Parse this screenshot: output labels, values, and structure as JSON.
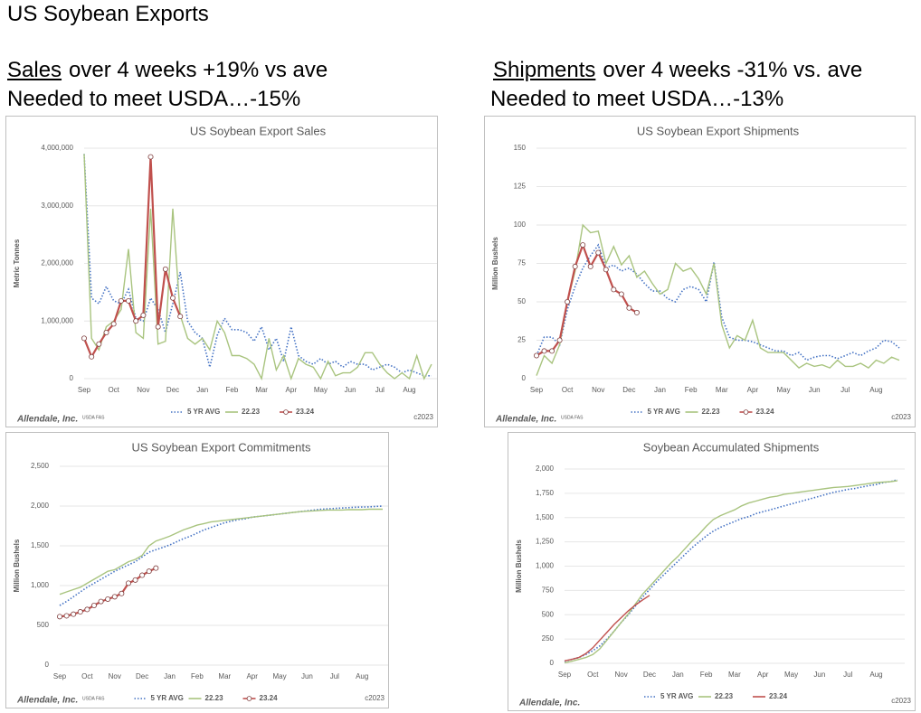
{
  "title": "US Soybean Exports",
  "left_heading": {
    "underlined": "Sales",
    "text": "over 4 weeks +19% vs ave",
    "line2": "Needed to meet USDA…-15%"
  },
  "right_heading": {
    "underlined": "Shipments",
    "text": "over 4 weeks -31% vs. ave",
    "line2": "Needed to meet USDA…-13%"
  },
  "chart_data": [
    {
      "type": "line",
      "title": "US Soybean Export Sales",
      "ylabel": "Metric Tonnes",
      "logo": "Allendale, Inc.",
      "source": "USDA FAS",
      "copyright": "c2023",
      "legend": "bottom",
      "categories": [
        "Sep",
        null,
        null,
        null,
        "Oct",
        null,
        null,
        null,
        "Nov",
        null,
        null,
        null,
        "Dec",
        null,
        null,
        null,
        "Jan",
        null,
        null,
        null,
        "Feb",
        null,
        null,
        null,
        "Mar",
        null,
        null,
        null,
        "Apr",
        null,
        null,
        null,
        "May",
        null,
        null,
        null,
        "Jun",
        null,
        null,
        null,
        "Jul",
        null,
        null,
        null,
        "Aug",
        null,
        null,
        null
      ],
      "ylim": [
        0,
        4000000
      ],
      "yticks": [
        0,
        {
          "value": 1000000,
          "label": "1,000,000"
        },
        {
          "value": 2000000,
          "label": "2,000,000"
        },
        {
          "value": 3000000,
          "label": "3,000,000"
        },
        {
          "value": 4000000,
          "label": "4,000,000"
        }
      ],
      "series": [
        {
          "name": "5 YR AVG",
          "color": "#4472c4",
          "dash": "dotted",
          "markers": false,
          "values": [
            3900000,
            1400000,
            1300000,
            1600000,
            1350000,
            1300000,
            1550000,
            1050000,
            1000000,
            1400000,
            1200000,
            800000,
            1300000,
            1850000,
            1000000,
            800000,
            700000,
            200000,
            750000,
            1050000,
            850000,
            850000,
            800000,
            650000,
            900000,
            500000,
            700000,
            300000,
            900000,
            400000,
            300000,
            250000,
            350000,
            250000,
            300000,
            200000,
            300000,
            250000,
            250000,
            150000,
            200000,
            250000,
            200000,
            100000,
            150000,
            100000,
            50000,
            50000
          ]
        },
        {
          "name": "22.23",
          "color": "#a9c47f",
          "dash": "solid",
          "markers": false,
          "values": [
            3900000,
            700000,
            500000,
            900000,
            1000000,
            1200000,
            2250000,
            800000,
            700000,
            2950000,
            600000,
            650000,
            2950000,
            1100000,
            700000,
            600000,
            700000,
            500000,
            1000000,
            800000,
            400000,
            400000,
            350000,
            250000,
            0,
            700000,
            150000,
            400000,
            0,
            350000,
            250000,
            200000,
            0,
            300000,
            50000,
            100000,
            100000,
            200000,
            450000,
            450000,
            250000,
            100000,
            0,
            100000,
            0,
            400000,
            0,
            250000
          ]
        },
        {
          "name": "23.24",
          "color": "#c0504d",
          "dash": "solid",
          "markers": true,
          "values": [
            700000,
            380000,
            600000,
            800000,
            950000,
            1350000,
            1350000,
            1000000,
            1100000,
            3850000,
            900000,
            1900000,
            1400000,
            1080000,
            null,
            null,
            null,
            null,
            null,
            null,
            null,
            null,
            null,
            null,
            null,
            null,
            null,
            null,
            null,
            null,
            null,
            null,
            null,
            null,
            null,
            null,
            null,
            null,
            null,
            null,
            null,
            null,
            null,
            null,
            null,
            null,
            null,
            null
          ]
        }
      ]
    },
    {
      "type": "line",
      "title": "US Soybean Export Shipments",
      "ylabel": "Million Bushels",
      "logo": "Allendale, Inc.",
      "source": "USDA FAS",
      "copyright": "c2023",
      "legend": "bottom",
      "categories": [
        "Sep",
        null,
        null,
        null,
        "Oct",
        null,
        null,
        null,
        "Nov",
        null,
        null,
        null,
        "Dec",
        null,
        null,
        null,
        "Jan",
        null,
        null,
        null,
        "Feb",
        null,
        null,
        null,
        "Mar",
        null,
        null,
        null,
        "Apr",
        null,
        null,
        null,
        "May",
        null,
        null,
        null,
        "Jun",
        null,
        null,
        null,
        "Jul",
        null,
        null,
        null,
        "Aug",
        null,
        null,
        null
      ],
      "ylim": [
        0,
        150
      ],
      "yticks": [
        0,
        25,
        50,
        75,
        100,
        125,
        150
      ],
      "series": [
        {
          "name": "5 YR AVG",
          "color": "#4472c4",
          "dash": "dotted",
          "markers": false,
          "values": [
            15,
            27,
            27,
            22,
            45,
            60,
            72,
            80,
            87,
            72,
            74,
            70,
            72,
            68,
            62,
            57,
            57,
            52,
            50,
            58,
            60,
            58,
            50,
            76,
            40,
            27,
            25,
            25,
            24,
            22,
            20,
            18,
            18,
            15,
            17,
            12,
            14,
            15,
            15,
            13,
            15,
            17,
            15,
            18,
            20,
            25,
            24,
            20
          ]
        },
        {
          "name": "22.23",
          "color": "#a9c47f",
          "dash": "solid",
          "markers": false,
          "values": [
            2,
            15,
            10,
            22,
            50,
            70,
            100,
            95,
            96,
            75,
            86,
            74,
            80,
            66,
            70,
            62,
            55,
            58,
            75,
            70,
            72,
            65,
            55,
            75,
            35,
            20,
            28,
            25,
            38,
            20,
            17,
            17,
            17,
            12,
            7,
            10,
            8,
            9,
            7,
            12,
            8,
            8,
            10,
            7,
            12,
            10,
            14,
            12
          ]
        },
        {
          "name": "23.24",
          "color": "#c0504d",
          "dash": "solid",
          "markers": true,
          "values": [
            15,
            18,
            18,
            25,
            50,
            73,
            87,
            73,
            82,
            71,
            58,
            55,
            46,
            43,
            null,
            null,
            null,
            null,
            null,
            null,
            null,
            null,
            null,
            null,
            null,
            null,
            null,
            null,
            null,
            null,
            null,
            null,
            null,
            null,
            null,
            null,
            null,
            null,
            null,
            null,
            null,
            null,
            null,
            null,
            null,
            null,
            null,
            null
          ]
        }
      ]
    },
    {
      "type": "line",
      "title": "US Soybean Export Commitments",
      "ylabel": "Million Bushels",
      "logo": "Allendale, Inc.",
      "source": "USDA FAS",
      "copyright": "c2023",
      "legend": "bottom",
      "categories": [
        "Sep",
        null,
        null,
        null,
        "Oct",
        null,
        null,
        null,
        "Nov",
        null,
        null,
        null,
        "Dec",
        null,
        null,
        null,
        "Jan",
        null,
        null,
        null,
        "Feb",
        null,
        null,
        null,
        "Mar",
        null,
        null,
        null,
        "Apr",
        null,
        null,
        null,
        "May",
        null,
        null,
        null,
        "Jun",
        null,
        null,
        null,
        "Jul",
        null,
        null,
        null,
        "Aug",
        null,
        null,
        null
      ],
      "ylim": [
        0,
        2500
      ],
      "yticks": [
        0,
        500,
        {
          "value": 1000,
          "label": "1,000"
        },
        {
          "value": 1500,
          "label": "1,500"
        },
        {
          "value": 2000,
          "label": "2,000"
        },
        {
          "value": 2500,
          "label": "2,500"
        }
      ],
      "series": [
        {
          "name": "5 YR AVG",
          "color": "#4472c4",
          "dash": "dotted",
          "markers": false,
          "values": [
            750,
            800,
            860,
            920,
            980,
            1030,
            1080,
            1130,
            1180,
            1220,
            1260,
            1300,
            1360,
            1420,
            1450,
            1480,
            1510,
            1550,
            1590,
            1620,
            1660,
            1700,
            1730,
            1760,
            1790,
            1810,
            1830,
            1840,
            1860,
            1870,
            1880,
            1890,
            1900,
            1910,
            1920,
            1930,
            1940,
            1950,
            1960,
            1965,
            1970,
            1975,
            1980,
            1985,
            1988,
            1990,
            1995,
            2000
          ]
        },
        {
          "name": "22.23",
          "color": "#a9c47f",
          "dash": "solid",
          "markers": false,
          "values": [
            890,
            920,
            950,
            980,
            1030,
            1080,
            1130,
            1180,
            1200,
            1250,
            1300,
            1330,
            1380,
            1500,
            1560,
            1590,
            1620,
            1660,
            1700,
            1730,
            1760,
            1780,
            1800,
            1810,
            1820,
            1830,
            1840,
            1850,
            1860,
            1870,
            1880,
            1890,
            1900,
            1910,
            1920,
            1930,
            1935,
            1940,
            1945,
            1950,
            1950,
            1950,
            1955,
            1955,
            1955,
            1960,
            1960,
            1960
          ]
        },
        {
          "name": "23.24",
          "color": "#c0504d",
          "dash": "solid",
          "markers": true,
          "values": [
            610,
            620,
            640,
            670,
            700,
            750,
            800,
            830,
            860,
            900,
            1030,
            1070,
            1130,
            1180,
            1220,
            null,
            null,
            null,
            null,
            null,
            null,
            null,
            null,
            null,
            null,
            null,
            null,
            null,
            null,
            null,
            null,
            null,
            null,
            null,
            null,
            null,
            null,
            null,
            null,
            null,
            null,
            null,
            null,
            null,
            null,
            null,
            null,
            null
          ]
        }
      ]
    },
    {
      "type": "line",
      "title": "Soybean Accumulated Shipments",
      "ylabel": "Million Bushels",
      "logo": "Allendale, Inc.",
      "copyright": "c2023",
      "legend": "bottom",
      "categories": [
        "Sep",
        null,
        null,
        null,
        "Oct",
        null,
        null,
        null,
        "Nov",
        null,
        null,
        null,
        "Dec",
        null,
        null,
        null,
        "Jan",
        null,
        null,
        null,
        "Feb",
        null,
        null,
        null,
        "Mar",
        null,
        null,
        null,
        "Apr",
        null,
        null,
        null,
        "May",
        null,
        null,
        null,
        "Jun",
        null,
        null,
        null,
        "Jul",
        null,
        null,
        null,
        "Aug",
        null,
        null,
        null
      ],
      "ylim": [
        0,
        2000
      ],
      "yticks": [
        0,
        250,
        500,
        750,
        {
          "value": 1000,
          "label": "1,000"
        },
        {
          "value": 1250,
          "label": "1,250"
        },
        {
          "value": 1500,
          "label": "1,500"
        },
        {
          "value": 1750,
          "label": "1,750"
        },
        {
          "value": 2000,
          "label": "2,000"
        }
      ],
      "series": [
        {
          "name": "5 YR AVG",
          "color": "#4472c4",
          "dash": "dotted",
          "markers": false,
          "values": [
            20,
            40,
            60,
            90,
            130,
            180,
            250,
            330,
            420,
            500,
            590,
            680,
            760,
            840,
            910,
            980,
            1050,
            1120,
            1190,
            1250,
            1310,
            1360,
            1400,
            1430,
            1460,
            1490,
            1510,
            1540,
            1560,
            1580,
            1600,
            1620,
            1640,
            1660,
            1680,
            1700,
            1720,
            1740,
            1760,
            1775,
            1790,
            1800,
            1815,
            1830,
            1840,
            1860,
            1870,
            1890
          ]
        },
        {
          "name": "22.23",
          "color": "#a9c47f",
          "dash": "solid",
          "markers": false,
          "values": [
            5,
            20,
            40,
            60,
            90,
            150,
            240,
            330,
            420,
            510,
            610,
            710,
            790,
            870,
            950,
            1030,
            1100,
            1180,
            1260,
            1330,
            1410,
            1480,
            1520,
            1550,
            1580,
            1620,
            1650,
            1670,
            1690,
            1710,
            1720,
            1740,
            1750,
            1760,
            1770,
            1780,
            1790,
            1800,
            1810,
            1815,
            1820,
            1830,
            1840,
            1850,
            1860,
            1865,
            1870,
            1880
          ]
        },
        {
          "name": "23.24",
          "color": "#c0504d",
          "dash": "solid",
          "markers": false,
          "values": [
            25,
            40,
            60,
            100,
            160,
            240,
            320,
            400,
            470,
            540,
            600,
            650,
            700,
            null,
            null,
            null,
            null,
            null,
            null,
            null,
            null,
            null,
            null,
            null,
            null,
            null,
            null,
            null,
            null,
            null,
            null,
            null,
            null,
            null,
            null,
            null,
            null,
            null,
            null,
            null,
            null,
            null,
            null,
            null,
            null,
            null,
            null,
            null
          ]
        }
      ]
    }
  ]
}
